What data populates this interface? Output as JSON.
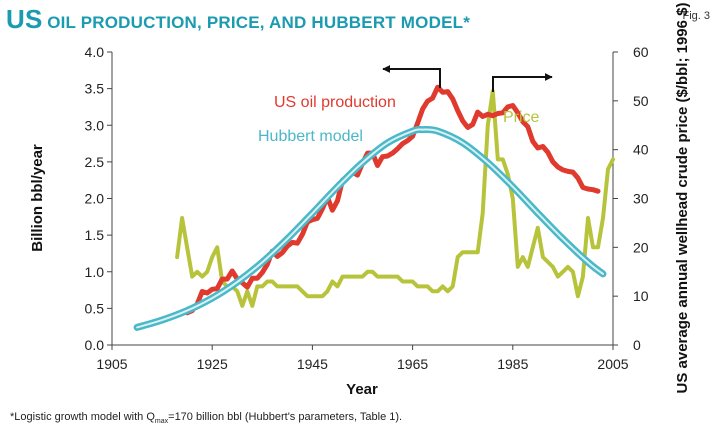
{
  "title": {
    "prefix": "US",
    "rest": "OIL PRODUCTION, PRICE, AND HUBBERT MODEL*"
  },
  "fig_label": "Fig. 3",
  "footnote": {
    "pre": "*Logistic growth model with Q",
    "sub": "max",
    "post": "=170 billion bbl (Hubbert's parameters, Table 1)."
  },
  "colors": {
    "production": "#e03a2f",
    "price": "#b7c43b",
    "hubbert": "#4bb8c8",
    "hubbert_core": "#d9f1f5",
    "title": "#1a9bb0"
  },
  "chart_data": {
    "type": "line",
    "title": "US OIL PRODUCTION, PRICE, AND HUBBERT MODEL*",
    "xlabel": "Year",
    "ylabel": "Billion bbl/year",
    "y2label": "US average annual wellhead crude price ($/bbl; 1996 $)",
    "xlim": [
      1905,
      2005
    ],
    "ylim": [
      0,
      4.0
    ],
    "y2lim": [
      0,
      60
    ],
    "x_ticks": [
      "1905",
      "1925",
      "1945",
      "1965",
      "1985",
      "2005"
    ],
    "y_ticks": [
      "0.0",
      "0.5",
      "1.0",
      "1.5",
      "2.0",
      "2.5",
      "3.0",
      "3.5",
      "4.0"
    ],
    "y2_ticks": [
      "0",
      "10",
      "20",
      "30",
      "40",
      "50",
      "60"
    ],
    "grid": false,
    "series": [
      {
        "name": "US oil production",
        "axis": "left",
        "x": [
          1920,
          1921,
          1922,
          1923,
          1924,
          1925,
          1926,
          1927,
          1928,
          1929,
          1930,
          1931,
          1932,
          1933,
          1934,
          1935,
          1936,
          1937,
          1938,
          1939,
          1940,
          1941,
          1942,
          1943,
          1944,
          1945,
          1946,
          1947,
          1948,
          1949,
          1950,
          1951,
          1952,
          1953,
          1954,
          1955,
          1956,
          1957,
          1958,
          1959,
          1960,
          1961,
          1962,
          1963,
          1964,
          1965,
          1966,
          1967,
          1968,
          1969,
          1970,
          1971,
          1972,
          1973,
          1974,
          1975,
          1976,
          1977,
          1978,
          1979,
          1980,
          1981,
          1982,
          1983,
          1984,
          1985,
          1986,
          1987,
          1988,
          1989,
          1990,
          1991,
          1992,
          1993,
          1994,
          1995,
          1996,
          1997,
          1998,
          1999,
          2000,
          2001,
          2002
        ],
        "values": [
          0.44,
          0.47,
          0.56,
          0.73,
          0.71,
          0.76,
          0.77,
          0.9,
          0.9,
          1.01,
          0.9,
          0.85,
          0.79,
          0.91,
          0.91,
          0.99,
          1.1,
          1.28,
          1.21,
          1.26,
          1.35,
          1.4,
          1.39,
          1.51,
          1.68,
          1.71,
          1.73,
          1.86,
          2.02,
          1.84,
          1.97,
          2.25,
          2.29,
          2.36,
          2.32,
          2.48,
          2.62,
          2.62,
          2.45,
          2.57,
          2.58,
          2.62,
          2.68,
          2.75,
          2.79,
          2.85,
          3.03,
          3.22,
          3.33,
          3.37,
          3.52,
          3.45,
          3.46,
          3.36,
          3.2,
          3.06,
          2.97,
          3.01,
          3.18,
          3.12,
          3.15,
          3.13,
          3.16,
          3.17,
          3.25,
          3.27,
          3.17,
          3.05,
          2.98,
          2.78,
          2.69,
          2.71,
          2.63,
          2.5,
          2.43,
          2.39,
          2.37,
          2.36,
          2.28,
          2.15,
          2.13,
          2.12,
          2.1
        ]
      },
      {
        "name": "Price",
        "axis": "right",
        "x": [
          1918,
          1919,
          1920,
          1921,
          1922,
          1923,
          1924,
          1925,
          1926,
          1927,
          1928,
          1929,
          1930,
          1931,
          1932,
          1933,
          1934,
          1935,
          1936,
          1937,
          1938,
          1939,
          1940,
          1941,
          1942,
          1943,
          1944,
          1945,
          1946,
          1947,
          1948,
          1949,
          1950,
          1951,
          1952,
          1953,
          1954,
          1955,
          1956,
          1957,
          1958,
          1959,
          1960,
          1961,
          1962,
          1963,
          1964,
          1965,
          1966,
          1967,
          1968,
          1969,
          1970,
          1971,
          1972,
          1973,
          1974,
          1975,
          1976,
          1977,
          1978,
          1979,
          1980,
          1981,
          1982,
          1983,
          1984,
          1985,
          1986,
          1987,
          1988,
          1989,
          1990,
          1991,
          1992,
          1993,
          1994,
          1995,
          1996,
          1997,
          1998,
          1999,
          2000,
          2001,
          2002,
          2003,
          2004,
          2005
        ],
        "values": [
          18,
          26,
          20,
          14,
          15,
          14,
          15,
          18,
          20,
          13,
          12,
          12,
          11,
          8,
          11,
          8,
          12,
          12,
          13,
          13,
          12,
          12,
          12,
          12,
          12,
          11,
          10,
          10,
          10,
          10,
          11,
          13,
          12,
          14,
          14,
          14,
          14,
          14,
          15,
          15,
          14,
          14,
          14,
          14,
          14,
          13,
          13,
          13,
          12,
          12,
          12,
          11,
          11,
          12,
          11,
          12,
          18,
          19,
          19,
          19,
          19,
          27,
          45,
          52,
          38,
          38,
          35,
          30,
          16,
          18,
          16,
          20,
          24,
          18,
          17,
          16,
          14,
          15,
          16,
          15,
          10,
          14,
          26,
          20,
          20,
          26,
          36,
          38
        ]
      },
      {
        "name": "Hubbert model",
        "axis": "left",
        "model": "logistic",
        "x": [
          1910,
          1915,
          1920,
          1925,
          1930,
          1935,
          1940,
          1945,
          1950,
          1955,
          1960,
          1965,
          1967,
          1970,
          1975,
          1980,
          1985,
          1990,
          1995,
          2000,
          2003
        ],
        "values": [
          0.24,
          0.34,
          0.47,
          0.64,
          0.86,
          1.13,
          1.45,
          1.8,
          2.16,
          2.49,
          2.76,
          2.92,
          2.94,
          2.92,
          2.76,
          2.49,
          2.16,
          1.8,
          1.45,
          1.13,
          0.97
        ]
      }
    ],
    "annotations": [
      {
        "text": "US oil production",
        "series": "US oil production"
      },
      {
        "text": "Hubbert model",
        "series": "Hubbert model"
      },
      {
        "text": "Price",
        "series": "Price"
      }
    ]
  }
}
